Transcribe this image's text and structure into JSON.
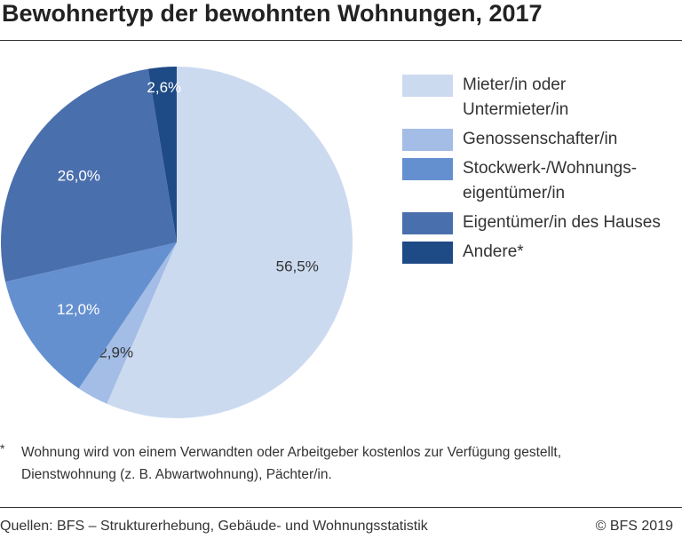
{
  "title": "Bewohnertyp der bewohnten Wohnungen, 2017",
  "chart_data": {
    "type": "pie",
    "title": "Bewohnertyp der bewohnten Wohnungen, 2017",
    "start_angle_deg": 0,
    "direction": "clockwise",
    "slices": [
      {
        "label": "Mieter/in oder Untermieter/in",
        "value": 56.5,
        "value_label": "56,5%",
        "color": "#ccdaf0",
        "text_color": "#333333"
      },
      {
        "label": "Genossenschafter/in",
        "value": 2.9,
        "value_label": "2,9%",
        "color": "#a3bde6",
        "text_color": "#333333"
      },
      {
        "label": "Stockwerk-/Wohnungs-eigentümer/in",
        "value": 12.0,
        "value_label": "12,0%",
        "color": "#6590d0",
        "text_color": "#ffffff"
      },
      {
        "label": "Eigentümer/in des Hauses",
        "value": 26.0,
        "value_label": "26,0%",
        "color": "#4a6fad",
        "text_color": "#ffffff"
      },
      {
        "label": "Andere*",
        "value": 2.6,
        "value_label": "2,6%",
        "color": "#1e4a85",
        "text_color": "#ffffff"
      }
    ]
  },
  "legend": [
    {
      "line1": "Mieter/in oder",
      "line2": "Untermieter/in",
      "color": "#ccdaf0"
    },
    {
      "line1": "Genossenschafter/in",
      "line2": "",
      "color": "#a3bde6"
    },
    {
      "line1": "Stockwerk-/Wohnungs-",
      "line2": "eigentümer/in",
      "color": "#6590d0"
    },
    {
      "line1": "Eigentümer/in des Hauses",
      "line2": "",
      "color": "#4a6fad"
    },
    {
      "line1": "Andere*",
      "line2": "",
      "color": "#1e4a85"
    }
  ],
  "footnote": {
    "marker": "*",
    "line1": "Wohnung wird von einem Verwandten oder Arbeitgeber kostenlos zur Verfügung gestellt,",
    "line2": "Dienstwohnung (z. B. Abwartwohnung), Pächter/in."
  },
  "source": "Quellen: BFS – Strukturerhebung, Gebäude- und Wohnungsstatistik",
  "copyright": "© BFS 2019"
}
